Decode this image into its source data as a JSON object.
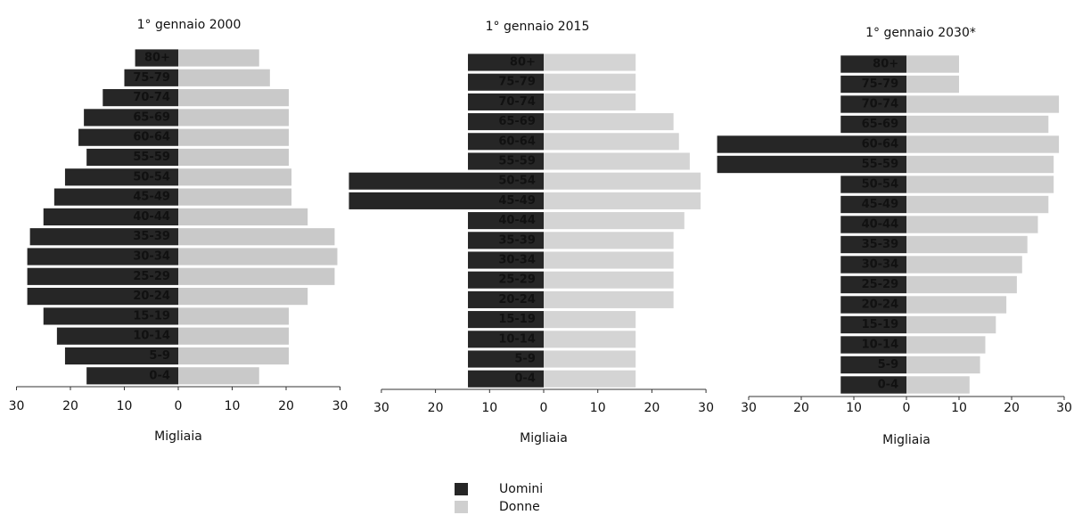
{
  "chart_data": [
    {
      "type": "pyramid",
      "title": "1° gennaio 2000",
      "xlabel": "Migliaia",
      "categories": [
        "80+",
        "75-79",
        "70-74",
        "65-69",
        "60-64",
        "55-59",
        "50-54",
        "45-49",
        "40-44",
        "35-39",
        "30-34",
        "25-29",
        "20-24",
        "15-19",
        "10-14",
        "5-9",
        "0-4"
      ],
      "series": [
        {
          "color": "#262626",
          "values": [
            -8,
            -10,
            -14,
            -17.5,
            -18.5,
            -17,
            -21,
            -23,
            -25,
            -27.5,
            -28,
            -28,
            -28,
            -25,
            -22.5,
            -21,
            -17
          ]
        },
        {
          "color": "#c9c9c9",
          "values": [
            15,
            17,
            20.5,
            20.5,
            20.5,
            20.5,
            21,
            21,
            24,
            29,
            29.5,
            29,
            24,
            20.5,
            20.5,
            20.5,
            15
          ]
        }
      ],
      "xlim": [
        -30,
        30
      ],
      "xticks": [
        {
          "value": -30,
          "label": "30"
        },
        {
          "value": -20,
          "label": "20"
        },
        {
          "value": -10,
          "label": "10"
        },
        0,
        10,
        20,
        30
      ]
    },
    {
      "type": "pyramid",
      "title": "1° gennaio 2015",
      "xlabel": "Migliaia",
      "categories": [
        "80+",
        "75-79",
        "70-74",
        "65-69",
        "60-64",
        "55-59",
        "50-54",
        "45-49",
        "40-44",
        "35-39",
        "30-34",
        "25-29",
        "20-24",
        "15-19",
        "10-14",
        "5-9",
        "0-4"
      ],
      "series": [
        {
          "color": "#262626",
          "values": [
            -14,
            -14,
            -14,
            -14,
            -14,
            -14,
            -36,
            -36,
            -14,
            -14,
            -14,
            -14,
            -14,
            -14,
            -14,
            -14,
            -14
          ]
        },
        {
          "color": "#d4d4d4",
          "values": [
            17,
            17,
            17,
            24,
            25,
            27,
            29,
            29,
            26,
            24,
            24,
            24,
            24,
            17,
            17,
            17,
            17
          ]
        }
      ],
      "xlim": [
        -30,
        30
      ],
      "xticks": [
        {
          "value": -30,
          "label": "30"
        },
        {
          "value": -20,
          "label": "20"
        },
        {
          "value": -10,
          "label": "10"
        },
        0,
        10,
        20,
        30
      ]
    },
    {
      "type": "pyramid",
      "title": "1° gennaio 2030*",
      "xlabel": "Migliaia",
      "categories": [
        "80+",
        "75-79",
        "70-74",
        "65-69",
        "60-64",
        "55-59",
        "50-54",
        "45-49",
        "40-44",
        "35-39",
        "30-34",
        "25-29",
        "20-24",
        "15-19",
        "10-14",
        "5-9",
        "0-4"
      ],
      "series": [
        {
          "color": "#262626",
          "values": [
            -12.5,
            -12.5,
            -12.5,
            -12.5,
            -36,
            -36,
            -12.5,
            -12.5,
            -12.5,
            -12.5,
            -12.5,
            -12.5,
            -12.5,
            -12.5,
            -12.5,
            -12.5,
            -12.5
          ]
        },
        {
          "color": "#cfcfcf",
          "values": [
            10,
            10,
            29,
            27,
            29,
            28,
            28,
            27,
            25,
            23,
            22,
            21,
            19,
            17,
            15,
            14,
            12
          ]
        }
      ],
      "xlim": [
        -30,
        30
      ],
      "xticks": [
        {
          "value": -30,
          "label": "30"
        },
        {
          "value": -20,
          "label": "20"
        },
        {
          "value": -10,
          "label": "10"
        },
        0,
        10,
        20,
        30
      ]
    }
  ],
  "legend": [
    {
      "name": "Uomini",
      "color": "#262626"
    },
    {
      "name": "Donne",
      "color": "#cfcfcf"
    }
  ]
}
